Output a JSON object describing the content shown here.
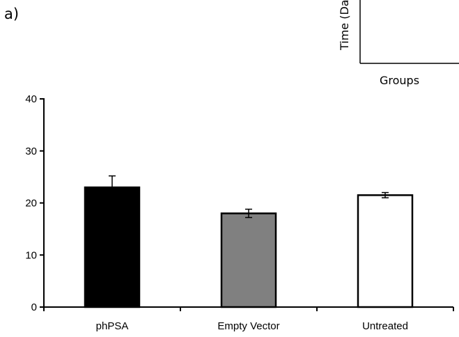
{
  "panel_label": "a)",
  "inset": {
    "ylabel": "Time (Da",
    "xlabel": "Groups"
  },
  "chart_data": {
    "type": "bar",
    "title": "",
    "xlabel": "",
    "ylabel": "",
    "categories": [
      "phPSA",
      "Empty Vector",
      "Untreated"
    ],
    "values": [
      23,
      18,
      21.5
    ],
    "errors": [
      2.2,
      0.8,
      0.5
    ],
    "ylim": [
      0,
      40
    ],
    "yticks": [
      0,
      10,
      20,
      30,
      40
    ],
    "grid": false,
    "bar_fills": [
      "#000000",
      "#808080",
      "#ffffff"
    ],
    "bar_stroke": "#000000"
  }
}
